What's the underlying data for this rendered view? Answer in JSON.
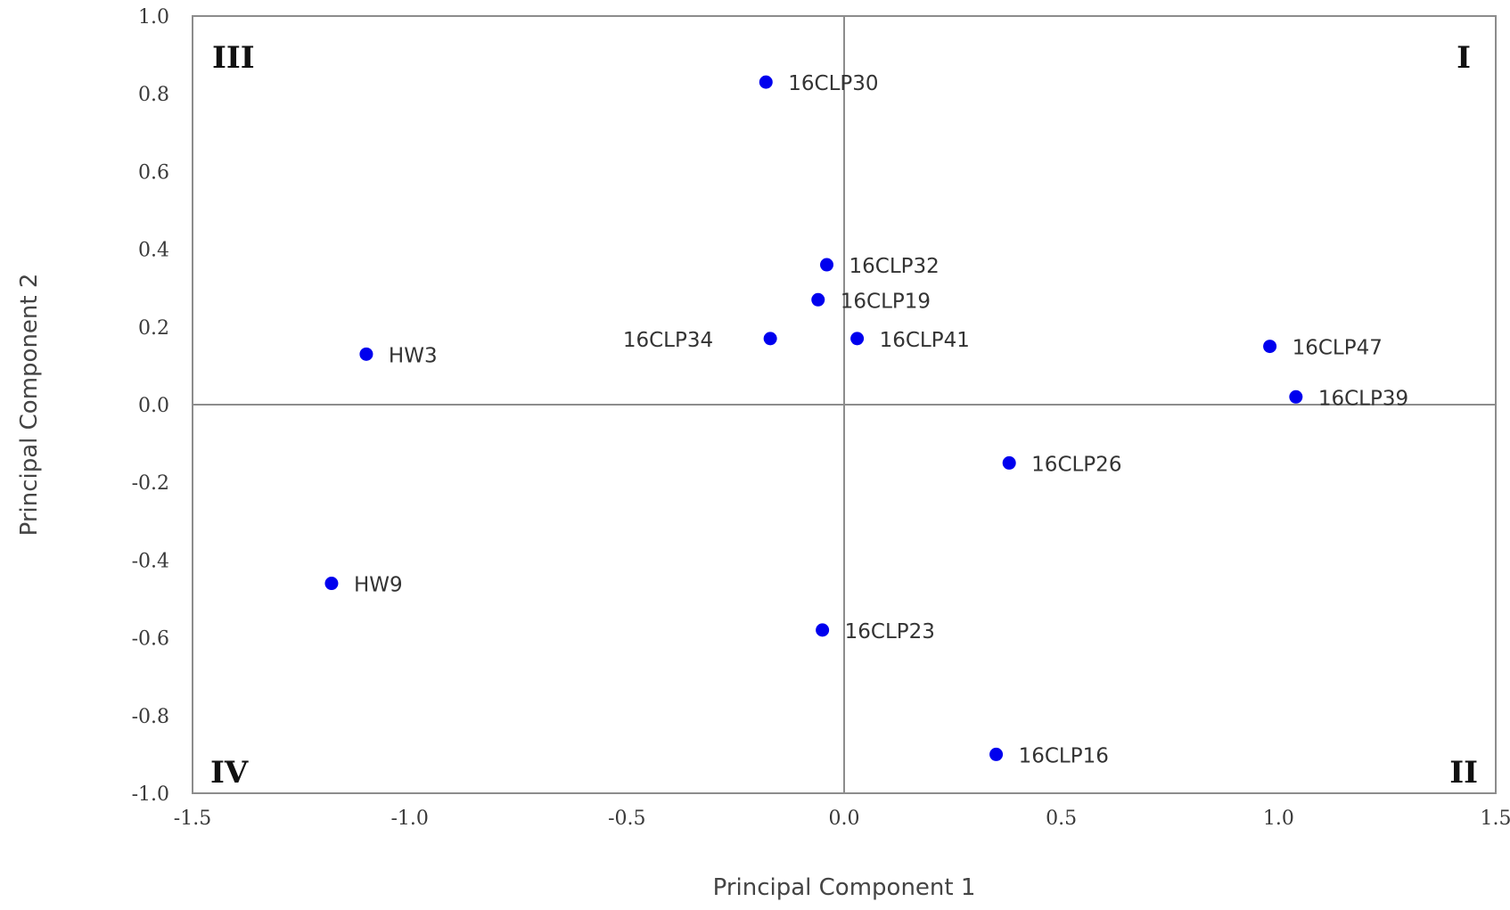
{
  "chart_data": {
    "type": "scatter",
    "title": "",
    "xlabel": "Principal Component 1",
    "ylabel": "Principal Component 2",
    "xlim": [
      -1.5,
      1.5
    ],
    "ylim": [
      -1.0,
      1.0
    ],
    "xticks": [
      "-1.5",
      "-1.0",
      "-0.5",
      "0.0",
      "0.5",
      "1.0",
      "1.5"
    ],
    "yticks": [
      "1.0",
      "0.8",
      "0.6",
      "0.4",
      "0.2",
      "0.0",
      "-0.2",
      "-0.4",
      "-0.6",
      "-0.8",
      "-1.0"
    ],
    "grid": false,
    "reference_lines": {
      "x": 0,
      "y": 0
    },
    "point_color": "#0000ee",
    "axis_color": "#8c8c8c",
    "points": [
      {
        "label": "16CLP30",
        "x": -0.18,
        "y": 0.83
      },
      {
        "label": "16CLP32",
        "x": -0.04,
        "y": 0.36
      },
      {
        "label": "16CLP19",
        "x": -0.06,
        "y": 0.27
      },
      {
        "label": "16CLP34",
        "x": -0.17,
        "y": 0.17
      },
      {
        "label": "16CLP41",
        "x": 0.03,
        "y": 0.17
      },
      {
        "label": "HW3",
        "x": -1.1,
        "y": 0.13
      },
      {
        "label": "16CLP47",
        "x": 0.98,
        "y": 0.15
      },
      {
        "label": "16CLP39",
        "x": 1.04,
        "y": 0.02
      },
      {
        "label": "16CLP26",
        "x": 0.38,
        "y": -0.15
      },
      {
        "label": "HW9",
        "x": -1.18,
        "y": -0.46
      },
      {
        "label": "16CLP23",
        "x": -0.05,
        "y": -0.58
      },
      {
        "label": "16CLP16",
        "x": 0.35,
        "y": -0.9
      }
    ],
    "quadrant_labels": [
      {
        "label": "I",
        "position": "top-right"
      },
      {
        "label": "II",
        "position": "bottom-right"
      },
      {
        "label": "III",
        "position": "top-left"
      },
      {
        "label": "IV",
        "position": "bottom-left"
      }
    ]
  }
}
